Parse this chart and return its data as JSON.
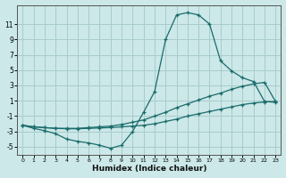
{
  "xlabel": "Humidex (Indice chaleur)",
  "background_color": "#cce8e8",
  "grid_color": "#a8cccc",
  "line_color": "#1a6b6b",
  "xlim": [
    -0.5,
    23.5
  ],
  "ylim": [
    -6.0,
    13.5
  ],
  "yticks": [
    -5,
    -3,
    -1,
    1,
    3,
    5,
    7,
    9,
    11
  ],
  "xticks": [
    0,
    1,
    2,
    3,
    4,
    5,
    6,
    7,
    8,
    9,
    10,
    11,
    12,
    13,
    14,
    15,
    16,
    17,
    18,
    19,
    20,
    21,
    22,
    23
  ],
  "line1_x": [
    0,
    1,
    2,
    3,
    4,
    5,
    6,
    7,
    8,
    9,
    10,
    11,
    12,
    13,
    14,
    15,
    16,
    17,
    18,
    19,
    20,
    21,
    22,
    23
  ],
  "line1_y": [
    -2.2,
    -2.6,
    -2.9,
    -3.3,
    -4.0,
    -4.3,
    -4.5,
    -4.8,
    -5.2,
    -4.8,
    -3.0,
    -0.5,
    2.2,
    9.0,
    12.2,
    12.5,
    12.2,
    11.0,
    6.2,
    4.9,
    4.0,
    3.5,
    0.9,
    0.8
  ],
  "line2_x": [
    0,
    1,
    2,
    3,
    4,
    5,
    6,
    7,
    8,
    9,
    10,
    11,
    12,
    13,
    14,
    15,
    16,
    17,
    18,
    19,
    20,
    21,
    22,
    23
  ],
  "line2_y": [
    -2.2,
    -2.4,
    -2.5,
    -2.6,
    -2.6,
    -2.6,
    -2.5,
    -2.4,
    -2.3,
    -2.1,
    -1.8,
    -1.5,
    -1.0,
    -0.5,
    0.1,
    0.6,
    1.1,
    1.6,
    2.0,
    2.5,
    2.9,
    3.2,
    3.4,
    0.9
  ],
  "line3_x": [
    0,
    1,
    2,
    3,
    4,
    5,
    6,
    7,
    8,
    9,
    10,
    11,
    12,
    13,
    14,
    15,
    16,
    17,
    18,
    19,
    20,
    21,
    22,
    23
  ],
  "line3_y": [
    -2.2,
    -2.4,
    -2.5,
    -2.6,
    -2.65,
    -2.65,
    -2.6,
    -2.55,
    -2.5,
    -2.4,
    -2.3,
    -2.2,
    -2.0,
    -1.7,
    -1.4,
    -1.0,
    -0.7,
    -0.4,
    -0.1,
    0.2,
    0.5,
    0.7,
    0.85,
    0.9
  ]
}
